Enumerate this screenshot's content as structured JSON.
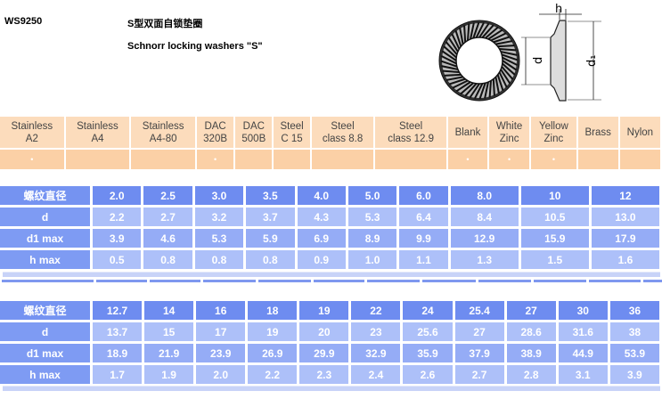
{
  "header": {
    "code": "WS9250",
    "title_cn": "S型双面自锁垫圈",
    "title_en": "Schnorr locking washers \"S\""
  },
  "diagram": {
    "labels": {
      "h": "h",
      "d": "d",
      "d1": "d₁"
    }
  },
  "materials": {
    "columns": [
      {
        "line1": "Stainless",
        "line2": "A2",
        "available": true
      },
      {
        "line1": "Stainless",
        "line2": "A4",
        "available": false
      },
      {
        "line1": "Stainless",
        "line2": "A4-80",
        "available": false
      },
      {
        "line1": "DAC",
        "line2": "320B",
        "available": true
      },
      {
        "line1": "DAC",
        "line2": "500B",
        "available": false
      },
      {
        "line1": "Steel",
        "line2": "C 15",
        "available": false
      },
      {
        "line1": "Steel",
        "line2": "class 8.8",
        "available": false
      },
      {
        "line1": "Steel",
        "line2": "class 12.9",
        "available": false
      },
      {
        "line1": "Blank",
        "line2": "",
        "available": true
      },
      {
        "line1": "White",
        "line2": "Zinc",
        "available": true
      },
      {
        "line1": "Yellow",
        "line2": "Zinc",
        "available": true
      },
      {
        "line1": "Brass",
        "line2": "",
        "available": false
      },
      {
        "line1": "Nylon",
        "line2": "",
        "available": false
      }
    ],
    "mark": "•"
  },
  "tables": [
    {
      "rows": [
        {
          "label": "螺纹直径",
          "values": [
            "2.0",
            "2.5",
            "3.0",
            "3.5",
            "4.0",
            "5.0",
            "6.0",
            "8.0",
            "10",
            "12"
          ]
        },
        {
          "label": "d",
          "values": [
            "2.2",
            "2.7",
            "3.2",
            "3.7",
            "4.3",
            "5.3",
            "6.4",
            "8.4",
            "10.5",
            "13.0"
          ]
        },
        {
          "label": "d1 max",
          "values": [
            "3.9",
            "4.6",
            "5.3",
            "5.9",
            "6.9",
            "8.9",
            "9.9",
            "12.9",
            "15.9",
            "17.9"
          ]
        },
        {
          "label": "h max",
          "values": [
            "0.5",
            "0.8",
            "0.8",
            "0.8",
            "0.9",
            "1.0",
            "1.1",
            "1.3",
            "1.5",
            "1.6"
          ]
        }
      ]
    },
    {
      "rows": [
        {
          "label": "螺纹直径",
          "values": [
            "12.7",
            "14",
            "16",
            "18",
            "19",
            "22",
            "24",
            "25.4",
            "27",
            "30",
            "36"
          ]
        },
        {
          "label": "d",
          "values": [
            "13.7",
            "15",
            "17",
            "19",
            "20",
            "23",
            "25.6",
            "27",
            "28.6",
            "31.6",
            "38"
          ]
        },
        {
          "label": "d1 max",
          "values": [
            "18.9",
            "21.9",
            "23.9",
            "26.9",
            "29.9",
            "32.9",
            "35.9",
            "37.9",
            "38.9",
            "44.9",
            "53.9"
          ]
        },
        {
          "label": "h max",
          "values": [
            "1.7",
            "1.9",
            "2.0",
            "2.2",
            "2.3",
            "2.4",
            "2.6",
            "2.7",
            "2.8",
            "3.1",
            "3.9"
          ]
        }
      ]
    }
  ]
}
